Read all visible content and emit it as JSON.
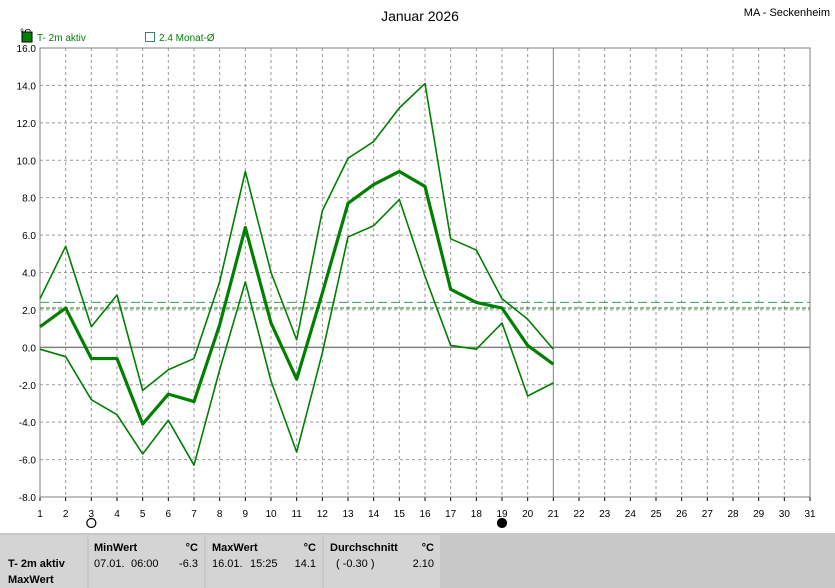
{
  "header": {
    "title": "Januar 2026",
    "station": "MA - Seckenheim"
  },
  "legend": {
    "series_label": "T- 2m aktiv",
    "avg_label": "2.4 Monat-Ø"
  },
  "colors": {
    "series": "#007f00",
    "avg_line": "#3a9a6a",
    "avg_line2": "#1e7a1e",
    "grid": "#9a9a9a",
    "zero_line": "#808080"
  },
  "chart_data": {
    "type": "line",
    "ylabel": "°C",
    "ylim": [
      -8,
      16
    ],
    "xlim": [
      1,
      31
    ],
    "x_ticks": [
      1,
      2,
      3,
      4,
      5,
      6,
      7,
      8,
      9,
      10,
      11,
      12,
      13,
      14,
      15,
      16,
      17,
      18,
      19,
      20,
      21,
      22,
      23,
      24,
      25,
      26,
      27,
      28,
      29,
      30,
      31
    ],
    "y_ticks": [
      "16.0",
      "14.0",
      "12.0",
      "10.0",
      "8.0",
      "6.0",
      "4.0",
      "2.0",
      "0.0",
      "-2.0",
      "-4.0",
      "-6.0",
      "-8.0"
    ],
    "x": [
      1,
      2,
      3,
      4,
      5,
      6,
      7,
      8,
      9,
      10,
      11,
      12,
      13,
      14,
      15,
      16,
      17,
      18,
      19,
      20,
      21
    ],
    "series": [
      {
        "values": [
          2.6,
          5.4,
          1.1,
          2.8,
          -2.3,
          -1.2,
          -0.6,
          3.5,
          9.4,
          4.0,
          0.4,
          7.3,
          10.1,
          11.0,
          12.8,
          14.1,
          5.8,
          5.2,
          2.6,
          1.5,
          -0.1
        ]
      },
      {
        "values": [
          1.1,
          2.1,
          -0.6,
          -0.6,
          -4.1,
          -2.5,
          -2.9,
          1.2,
          6.4,
          1.3,
          -1.7,
          2.9,
          7.7,
          8.7,
          9.4,
          8.6,
          3.1,
          2.4,
          2.1,
          0.1,
          -0.9
        ]
      },
      {
        "values": [
          -0.1,
          -0.5,
          -2.8,
          -3.6,
          -5.7,
          -3.9,
          -6.3,
          -1.2,
          3.5,
          -1.8,
          -5.6,
          -0.3,
          5.9,
          6.5,
          7.9,
          3.8,
          0.1,
          -0.1,
          1.3,
          -2.6,
          -1.9
        ]
      }
    ],
    "reference_lines": [
      2.4,
      2.1
    ],
    "current_day": 21,
    "moon_phases": [
      {
        "day": 3,
        "phase": "full"
      },
      {
        "day": 19,
        "phase": "new"
      }
    ],
    "grid": true
  },
  "stats": {
    "row_label": "T- 2m aktiv",
    "row_sub": "MaxWert",
    "min": {
      "header": "MinWert",
      "unit": "°C",
      "date": "07.01.",
      "time": "06:00",
      "value": "-6.3"
    },
    "max": {
      "header": "MaxWert",
      "unit": "°C",
      "date": "16.01.",
      "time": "15:25",
      "value": "14.1"
    },
    "avg": {
      "header": "Durchschnitt",
      "unit": "°C",
      "dev": "( -0.30 )",
      "value": "2.10"
    }
  }
}
